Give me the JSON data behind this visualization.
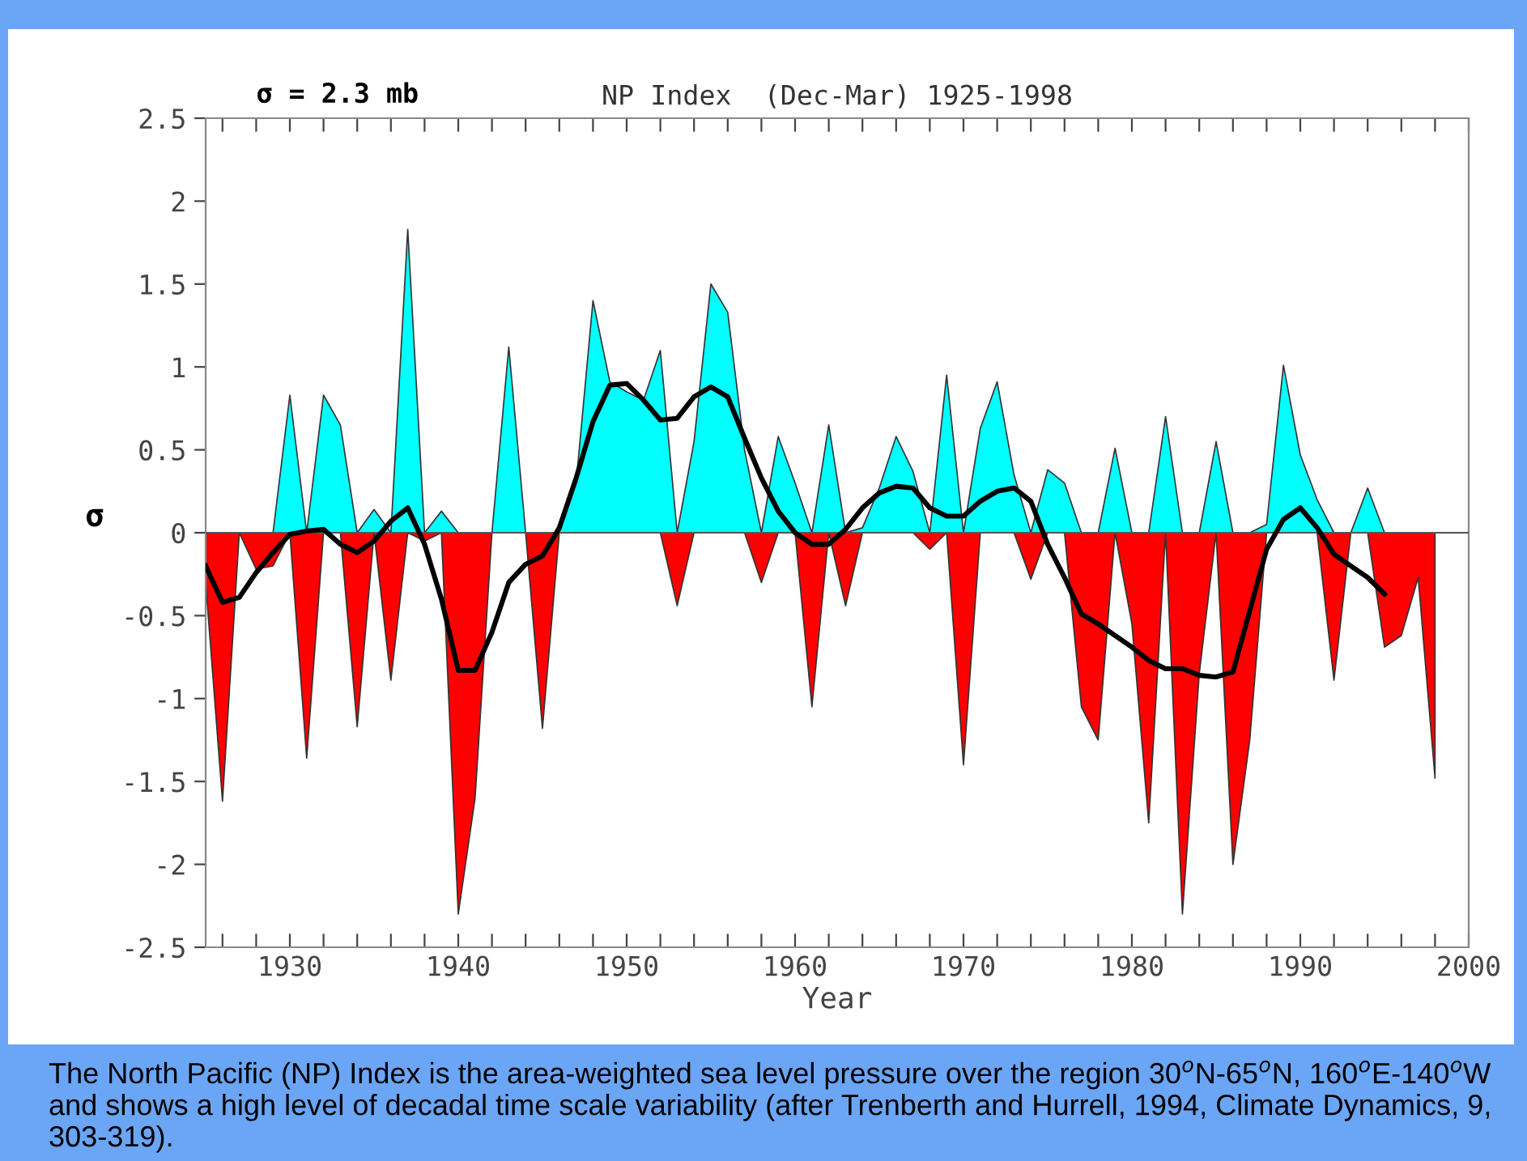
{
  "chart_data": {
    "type": "area",
    "title": "NP Index  (Dec-Mar) 1925-1998",
    "xlabel": "Year",
    "ylabel": "σ",
    "annotations": [
      "σ = 2.3 mb",
      "The North Pacific (NP) Index is the area-weighted sea level pressure over the region 30$^{o}$N-65$^{o}$N, 160$^{o}$E-140$^{o}$W and shows a high level of decadal time scale variability (after Trenberth and Hurrell, 1994, Climate Dynamics, 9, 303-319)."
    ],
    "xlim": [
      1925,
      2000
    ],
    "ylim": [
      -2.5,
      2.5
    ],
    "xticks": [
      {
        "value": 1926,
        "label": null
      },
      {
        "value": 1928,
        "label": null
      },
      1930,
      {
        "value": 1932,
        "label": null
      },
      {
        "value": 1934,
        "label": null
      },
      {
        "value": 1936,
        "label": null
      },
      {
        "value": 1938,
        "label": null
      },
      1940,
      {
        "value": 1942,
        "label": null
      },
      {
        "value": 1944,
        "label": null
      },
      {
        "value": 1946,
        "label": null
      },
      {
        "value": 1948,
        "label": null
      },
      1950,
      {
        "value": 1952,
        "label": null
      },
      {
        "value": 1954,
        "label": null
      },
      {
        "value": 1956,
        "label": null
      },
      {
        "value": 1958,
        "label": null
      },
      1960,
      {
        "value": 1962,
        "label": null
      },
      {
        "value": 1964,
        "label": null
      },
      {
        "value": 1966,
        "label": null
      },
      {
        "value": 1968,
        "label": null
      },
      1970,
      {
        "value": 1972,
        "label": null
      },
      {
        "value": 1974,
        "label": null
      },
      {
        "value": 1976,
        "label": null
      },
      {
        "value": 1978,
        "label": null
      },
      1980,
      {
        "value": 1982,
        "label": null
      },
      {
        "value": 1984,
        "label": null
      },
      {
        "value": 1986,
        "label": null
      },
      {
        "value": 1988,
        "label": null
      },
      1990,
      {
        "value": 1992,
        "label": null
      },
      {
        "value": 1994,
        "label": null
      },
      {
        "value": 1996,
        "label": null
      },
      {
        "value": 1998,
        "label": null
      },
      2000
    ],
    "yticks": [
      -2.5,
      -2,
      -1.5,
      -1,
      -0.5,
      0,
      0.5,
      1,
      1.5,
      2,
      2.5
    ],
    "ref_lines": [
      {
        "axis": "y",
        "value": 0,
        "color": "#555555"
      }
    ],
    "grid": false,
    "legend": false,
    "series": [
      {
        "color": "#00ffff",
        "x": [
          1925,
          1926,
          1927,
          1928,
          1929,
          1930,
          1931,
          1932,
          1933,
          1934,
          1935,
          1936,
          1937,
          1938,
          1939,
          1940,
          1941,
          1942,
          1943,
          1944,
          1945,
          1946,
          1947,
          1948,
          1949,
          1950,
          1951,
          1952,
          1953,
          1954,
          1955,
          1956,
          1957,
          1958,
          1959,
          1960,
          1961,
          1962,
          1963,
          1964,
          1965,
          1966,
          1967,
          1968,
          1969,
          1970,
          1971,
          1972,
          1973,
          1974,
          1975,
          1976,
          1977,
          1978,
          1979,
          1980,
          1981,
          1982,
          1983,
          1984,
          1985,
          1986,
          1987,
          1988,
          1989,
          1990,
          1991,
          1992,
          1993,
          1994,
          1995,
          1996,
          1997,
          1998
        ],
        "values": [
          0,
          0,
          0,
          0,
          0,
          0.83,
          0,
          0.83,
          0.65,
          0,
          0.14,
          0,
          1.83,
          0,
          0.13,
          0,
          0,
          0,
          1.12,
          0,
          0,
          0,
          0.3,
          1.4,
          0.91,
          0.85,
          0.8,
          1.1,
          0,
          0.55,
          1.5,
          1.33,
          0.5,
          0,
          0.58,
          0.3,
          0,
          0.65,
          0,
          0.03,
          0.27,
          0.58,
          0.37,
          0,
          0.95,
          0,
          0.63,
          0.91,
          0.35,
          0,
          0.38,
          0.3,
          0,
          0,
          0.51,
          0,
          0,
          0.7,
          0,
          0,
          0.55,
          0,
          0,
          0.05,
          1.01,
          0.47,
          0.2,
          0,
          0,
          0.27,
          0,
          0,
          0,
          0
        ]
      },
      {
        "color": "#ff0000",
        "x": [
          1925,
          1926,
          1927,
          1928,
          1929,
          1930,
          1931,
          1932,
          1933,
          1934,
          1935,
          1936,
          1937,
          1938,
          1939,
          1940,
          1941,
          1942,
          1943,
          1944,
          1945,
          1946,
          1947,
          1948,
          1949,
          1950,
          1951,
          1952,
          1953,
          1954,
          1955,
          1956,
          1957,
          1958,
          1959,
          1960,
          1961,
          1962,
          1963,
          1964,
          1965,
          1966,
          1967,
          1968,
          1969,
          1970,
          1971,
          1972,
          1973,
          1974,
          1975,
          1976,
          1977,
          1978,
          1979,
          1980,
          1981,
          1982,
          1983,
          1984,
          1985,
          1986,
          1987,
          1988,
          1989,
          1990,
          1991,
          1992,
          1993,
          1994,
          1995,
          1996,
          1997,
          1998
        ],
        "values": [
          -0.3,
          -1.62,
          0,
          -0.22,
          -0.2,
          0,
          -1.36,
          0,
          0,
          -1.17,
          0,
          -0.89,
          0,
          -0.05,
          0,
          -2.3,
          -1.6,
          0,
          0,
          0,
          -1.18,
          0,
          0,
          0,
          0,
          0,
          0,
          0,
          -0.44,
          0,
          0,
          0,
          0,
          -0.3,
          0,
          0,
          -1.05,
          0,
          -0.44,
          0,
          0,
          0,
          0,
          -0.1,
          0,
          -1.4,
          0,
          0,
          0,
          -0.28,
          0,
          0,
          -1.05,
          -1.25,
          0,
          -0.55,
          -1.75,
          0,
          -2.3,
          -0.85,
          0,
          -2.0,
          -1.25,
          0,
          0,
          0,
          0,
          -0.89,
          0,
          0,
          -0.69,
          -0.62,
          -0.27,
          -1.48
        ]
      },
      {
        "type": "line",
        "color": "#000000",
        "x": [
          1925,
          1926,
          1927,
          1928,
          1929,
          1930,
          1931,
          1932,
          1933,
          1934,
          1935,
          1936,
          1937,
          1938,
          1939,
          1940,
          1941,
          1942,
          1943,
          1944,
          1945,
          1946,
          1947,
          1948,
          1949,
          1950,
          1951,
          1952,
          1953,
          1954,
          1955,
          1956,
          1957,
          1958,
          1959,
          1960,
          1961,
          1962,
          1963,
          1964,
          1965,
          1966,
          1967,
          1968,
          1969,
          1970,
          1971,
          1972,
          1973,
          1974,
          1975,
          1976,
          1977,
          1978,
          1979,
          1980,
          1981,
          1982,
          1983,
          1984,
          1985,
          1986,
          1987,
          1988,
          1989,
          1990,
          1991,
          1992,
          1993,
          1994,
          1995
        ],
        "values": [
          -0.2,
          -0.42,
          -0.39,
          -0.24,
          -0.12,
          -0.01,
          0.01,
          0.02,
          -0.07,
          -0.12,
          -0.05,
          0.07,
          0.15,
          -0.07,
          -0.4,
          -0.83,
          -0.83,
          -0.6,
          -0.3,
          -0.19,
          -0.14,
          0.03,
          0.33,
          0.67,
          0.89,
          0.9,
          0.8,
          0.68,
          0.69,
          0.82,
          0.88,
          0.82,
          0.57,
          0.33,
          0.13,
          0.0,
          -0.07,
          -0.07,
          0.02,
          0.15,
          0.24,
          0.28,
          0.27,
          0.15,
          0.1,
          0.1,
          0.19,
          0.25,
          0.27,
          0.19,
          -0.07,
          -0.27,
          -0.49,
          -0.55,
          -0.62,
          -0.69,
          -0.77,
          -0.82,
          -0.82,
          -0.86,
          -0.87,
          -0.84,
          -0.47,
          -0.1,
          0.08,
          0.15,
          0.03,
          -0.13,
          -0.2,
          -0.27,
          -0.37
        ]
      }
    ]
  }
}
